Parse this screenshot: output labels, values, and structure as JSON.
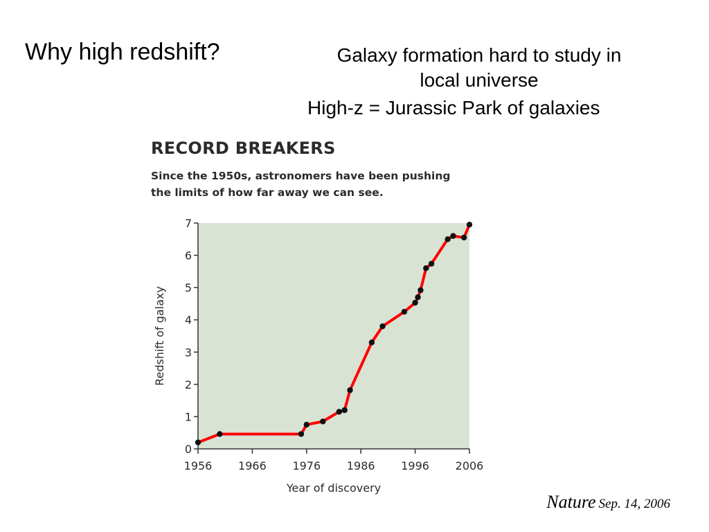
{
  "slide": {
    "title": "Why high redshift?",
    "bullets": [
      {
        "line1": "Galaxy formation hard to study in",
        "line2": "local universe"
      },
      {
        "line1": "High-z = Jurassic Park of galaxies"
      }
    ],
    "credit": {
      "journal": "Nature",
      "date": "Sep. 14, 2006"
    }
  },
  "colors": {
    "plot_background": "#d9e3d4",
    "line": "#ff0000",
    "marker": "#111111",
    "text": "#2b2b2b"
  },
  "chart_data": {
    "type": "line",
    "title": "RECORD BREAKERS",
    "subtitle": "Since the 1950s, astronomers have been pushing the limits of how far away we can see.",
    "xlabel": "Year of discovery",
    "ylabel": "Redshift of galaxy",
    "xlim": [
      1956,
      2006
    ],
    "ylim": [
      0,
      7
    ],
    "xticks": [
      1956,
      1966,
      1976,
      1986,
      1996,
      2006
    ],
    "yticks": [
      0,
      1,
      2,
      3,
      4,
      5,
      6,
      7
    ],
    "grid": false,
    "legend": "none",
    "series": [
      {
        "x": [
          1956,
          1960,
          1975,
          1976,
          1979,
          1982,
          1983,
          1984,
          1988,
          1990,
          1994,
          1996,
          1996.5,
          1997,
          1998,
          1999,
          2002,
          2003,
          2005,
          2006
        ],
        "y": [
          0.2,
          0.46,
          0.46,
          0.75,
          0.85,
          1.15,
          1.2,
          1.82,
          3.3,
          3.8,
          4.25,
          4.53,
          4.7,
          4.92,
          5.6,
          5.74,
          6.5,
          6.6,
          6.55,
          6.95
        ]
      }
    ]
  }
}
